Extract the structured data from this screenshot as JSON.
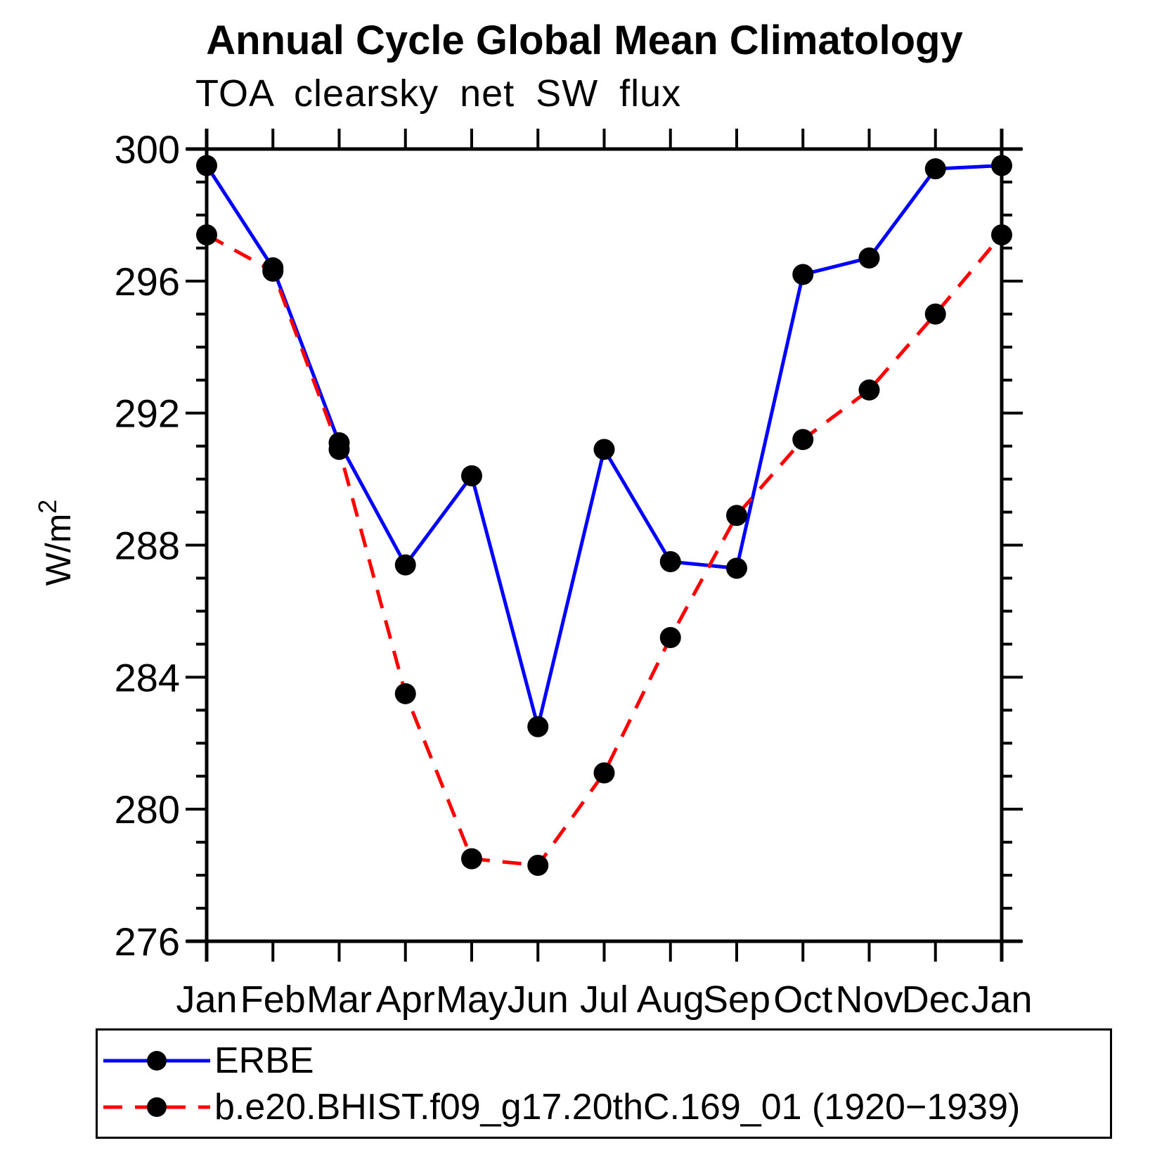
{
  "chart_data": {
    "type": "line",
    "title": "Annual Cycle Global Mean Climatology",
    "subtitle": "TOA clearsky net SW flux",
    "ylabel": "W/m²",
    "xlabel": "",
    "categories": [
      "Jan",
      "Feb",
      "Mar",
      "Apr",
      "May",
      "Jun",
      "Jul",
      "Aug",
      "Sep",
      "Oct",
      "Nov",
      "Dec",
      "Jan"
    ],
    "ylim": [
      276,
      300
    ],
    "yticks": [
      300,
      296,
      292,
      288,
      284,
      280,
      276
    ],
    "ytick_minor_step": 1,
    "grid": false,
    "legend_position": "bottom",
    "marker_color": "#000000",
    "axis_color": "#000000",
    "series": [
      {
        "name": "ERBE",
        "color": "#0000ff",
        "style": "solid",
        "marker": "circle",
        "values": [
          299.5,
          296.4,
          291.1,
          287.4,
          290.1,
          282.5,
          290.9,
          287.5,
          287.3,
          296.2,
          296.7,
          299.4,
          299.5
        ]
      },
      {
        "name": "b.e20.BHIST.f09_g17.20thC.169_01 (1920−1939)",
        "color": "#ff0000",
        "style": "dashed",
        "marker": "circle",
        "values": [
          297.4,
          296.3,
          290.9,
          283.5,
          278.5,
          278.3,
          281.1,
          285.2,
          288.9,
          291.2,
          292.7,
          295.0,
          297.4
        ]
      }
    ]
  }
}
